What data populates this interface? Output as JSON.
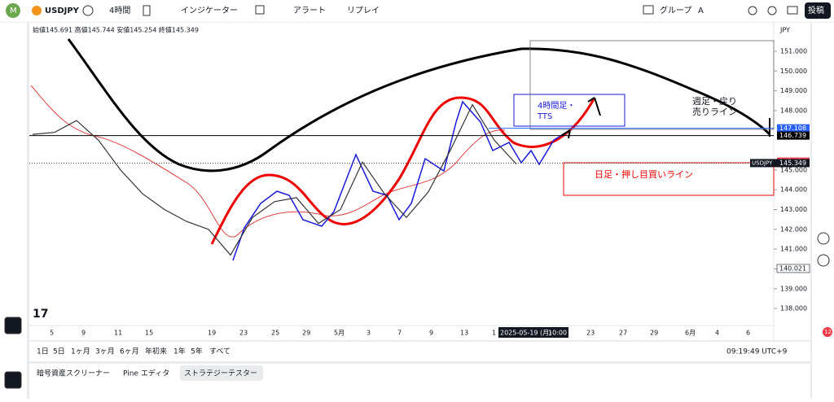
{
  "toolbar": {
    "symbol": "USDJPY",
    "interval": "4時間",
    "indicators": "インジケーター",
    "alert": "アラート",
    "replay": "リプレイ",
    "group": "グループ",
    "group_key": "A",
    "publish": "投稿"
  },
  "chart_data": {
    "type": "line",
    "ohlc": "始値145.691 高値145.744 安値145.254 終値145.349",
    "currency": "JPY",
    "ylim": [
      137.14,
      152.44
    ],
    "yticks": [
      {
        "value": 138,
        "label": "138.000"
      },
      {
        "value": 139,
        "label": "139.000"
      },
      {
        "value": 140,
        "label": "140.000"
      },
      {
        "value": 141,
        "label": "141.000"
      },
      {
        "value": 142,
        "label": "142.000"
      },
      {
        "value": 143,
        "label": "143.000"
      },
      {
        "value": 144,
        "label": "144.000"
      },
      {
        "value": 145,
        "label": "145.000"
      },
      {
        "value": 148,
        "label": "148.000"
      },
      {
        "value": 149,
        "label": "149.000"
      },
      {
        "value": 150,
        "label": "150.000"
      },
      {
        "value": 151,
        "label": "151.000"
      }
    ],
    "price_labels": [
      147.108,
      146.739,
      145.424,
      145.349,
      140.021
    ],
    "symbol_label": "USDJPY",
    "values": [
      146.8,
      146.9,
      147.5,
      146.5,
      145,
      143.8,
      143,
      142.4,
      142,
      140.7,
      142.6,
      143.4,
      143.6,
      142.3,
      143,
      145.4,
      143.8,
      142.6,
      143.9,
      146,
      148.3,
      146.5,
      145.3
    ],
    "x_labels": [
      "5",
      "9",
      "11",
      "15",
      "19",
      "23",
      "25",
      "29",
      "5月",
      "3",
      "7",
      "9",
      "13",
      "1",
      "23",
      "27",
      "29",
      "6月",
      "4",
      "6"
    ],
    "crosshair_date": "2025-05-19 (月)",
    "crosshair_time": "10:00",
    "annotations": [
      "4時間足・\nTTS",
      "週足・戻り\n売りライン",
      "日足・押し目買いライン"
    ]
  },
  "ranges": [
    "1日",
    "5日",
    "1ヶ月",
    "3ヶ月",
    "6ヶ月",
    "年初来",
    "1年",
    "5年",
    "すべて"
  ],
  "clock": "09:19:49 UTC+9",
  "tabs": [
    "暗号資産スクリーナー",
    "Pine エディタ",
    "ストラテジーテスター"
  ],
  "badge": "12"
}
